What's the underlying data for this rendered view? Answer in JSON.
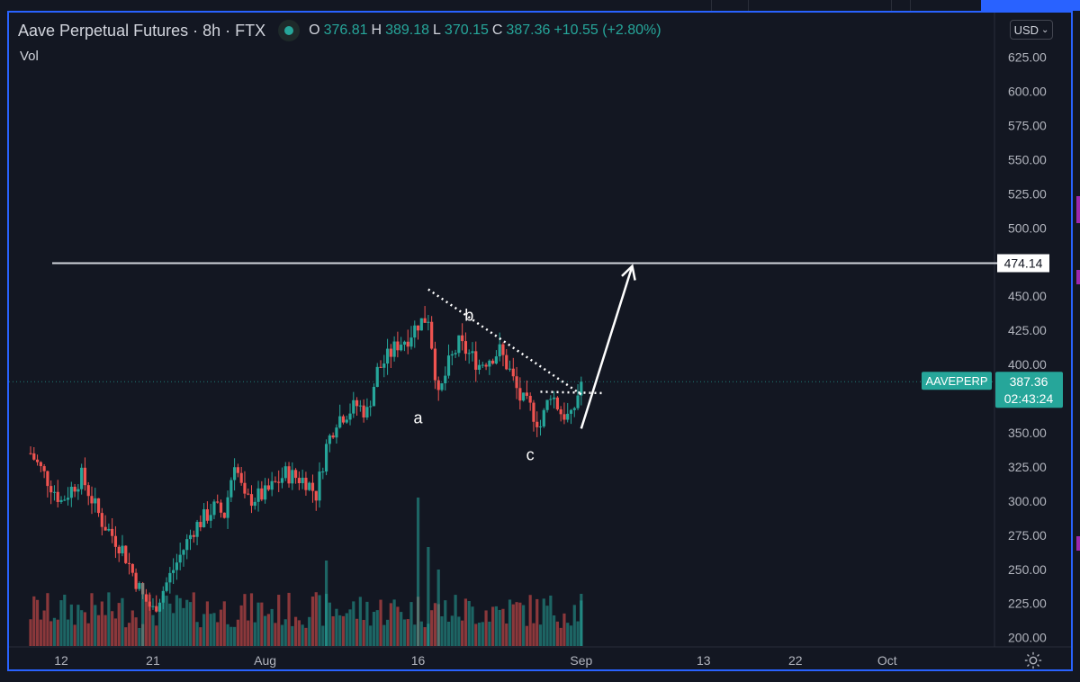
{
  "header": {
    "symbol_title": "Aave Perpetual Futures · 8h · FTX",
    "open_label": "O",
    "open": "376.81",
    "high_label": "H",
    "high": "389.18",
    "low_label": "L",
    "low": "370.15",
    "close_label": "C",
    "close": "387.36",
    "change": "+10.55 (+2.80%)",
    "status_icon": "market-open-dot"
  },
  "indicator_label": "Vol",
  "currency": "USD",
  "colors": {
    "up": "#26a69a",
    "down": "#ef5350",
    "accent": "#2962ff",
    "drawing": "#ffffff"
  },
  "chart_data": {
    "type": "candlestick",
    "interval": "8h",
    "y_axis": {
      "ticks": [
        625,
        600,
        575,
        550,
        525,
        500,
        450,
        425,
        400,
        375,
        350,
        325,
        300,
        275,
        250,
        225,
        200
      ],
      "tick_labels": [
        "625.00",
        "600.00",
        "575.00",
        "550.00",
        "525.00",
        "500.00",
        "450.00",
        "425.00",
        "400.00",
        "375.00",
        "350.00",
        "325.00",
        "300.00",
        "275.00",
        "250.00",
        "225.00",
        "200.00"
      ],
      "range": [
        185,
        640
      ]
    },
    "x_axis": {
      "tick_labels": [
        "12",
        "21",
        "Aug",
        "16",
        "Sep",
        "13",
        "22",
        "Oct"
      ],
      "tick_dates": [
        "2021-07-12",
        "2021-07-21",
        "2021-08-01",
        "2021-08-16",
        "2021-09-01",
        "2021-09-13",
        "2021-09-22",
        "2021-10-01"
      ]
    },
    "last_close": 387.36,
    "series": [
      {
        "name": "Price",
        "key_points": [
          {
            "date": "2021-07-09",
            "value": 335
          },
          {
            "date": "2021-07-12",
            "value": 300
          },
          {
            "date": "2021-07-14",
            "value": 318
          },
          {
            "date": "2021-07-16",
            "value": 285
          },
          {
            "date": "2021-07-18",
            "value": 265
          },
          {
            "date": "2021-07-20",
            "value": 230
          },
          {
            "date": "2021-07-21",
            "value": 220
          },
          {
            "date": "2021-07-23",
            "value": 250
          },
          {
            "date": "2021-07-25",
            "value": 280
          },
          {
            "date": "2021-07-27",
            "value": 295
          },
          {
            "date": "2021-07-28",
            "value": 290
          },
          {
            "date": "2021-07-29",
            "value": 330
          },
          {
            "date": "2021-07-30",
            "value": 300
          },
          {
            "date": "2021-08-01",
            "value": 305
          },
          {
            "date": "2021-08-03",
            "value": 320
          },
          {
            "date": "2021-08-05",
            "value": 315
          },
          {
            "date": "2021-08-06",
            "value": 305
          },
          {
            "date": "2021-08-07",
            "value": 340
          },
          {
            "date": "2021-08-08",
            "value": 360
          },
          {
            "date": "2021-08-10",
            "value": 370
          },
          {
            "date": "2021-08-11",
            "value": 365
          },
          {
            "date": "2021-08-12",
            "value": 395
          },
          {
            "date": "2021-08-14",
            "value": 415
          },
          {
            "date": "2021-08-15",
            "value": 420
          },
          {
            "date": "2021-08-16",
            "value": 430
          },
          {
            "date": "2021-08-17",
            "value": 435
          },
          {
            "date": "2021-08-18",
            "value": 375
          },
          {
            "date": "2021-08-19",
            "value": 400
          },
          {
            "date": "2021-08-20",
            "value": 415
          },
          {
            "date": "2021-08-22",
            "value": 400
          },
          {
            "date": "2021-08-24",
            "value": 410
          },
          {
            "date": "2021-08-25",
            "value": 395
          },
          {
            "date": "2021-08-26",
            "value": 375
          },
          {
            "date": "2021-08-27",
            "value": 368
          },
          {
            "date": "2021-08-28",
            "value": 355
          },
          {
            "date": "2021-08-29",
            "value": 380
          },
          {
            "date": "2021-08-30",
            "value": 365
          },
          {
            "date": "2021-08-31",
            "value": 360
          },
          {
            "date": "2021-09-01",
            "value": 387.36
          }
        ]
      }
    ],
    "annotations": {
      "horizontal_level": {
        "value": 474.14,
        "label": "474.14"
      },
      "wave_labels": [
        {
          "text": "a",
          "date": "2021-08-16",
          "value": 357
        },
        {
          "text": "b",
          "date": "2021-08-21",
          "value": 432
        },
        {
          "text": "c",
          "date": "2021-08-27",
          "value": 330
        }
      ],
      "trendline_dotted": {
        "from": {
          "date": "2021-08-17",
          "value": 455
        },
        "to": {
          "date": "2021-09-01",
          "value": 378
        }
      },
      "support_dotted": {
        "from": {
          "date": "2021-08-28",
          "value": 380
        },
        "to": {
          "date": "2021-09-03",
          "value": 379
        }
      },
      "projection_arrow": {
        "from": {
          "date": "2021-09-01",
          "value": 353
        },
        "to": {
          "date": "2021-09-06",
          "value": 472
        }
      }
    },
    "price_tag": {
      "symbol": "AAVEPERP",
      "price": "387.36",
      "countdown": "02:43:24"
    }
  }
}
